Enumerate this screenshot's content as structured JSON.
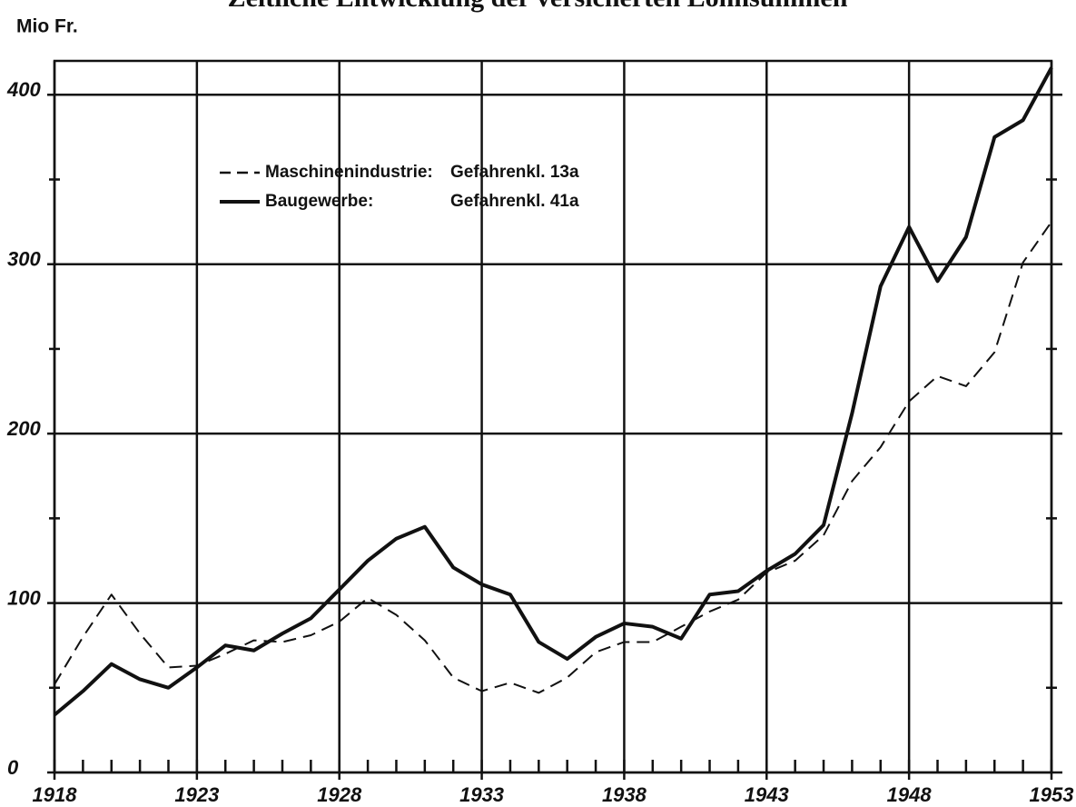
{
  "chart_data": {
    "type": "line",
    "title": "Zeitliche Entwicklung der versicherten Lohnsummen",
    "y_label": "Mio Fr.",
    "x": [
      1918,
      1919,
      1920,
      1921,
      1922,
      1923,
      1924,
      1925,
      1926,
      1927,
      1928,
      1929,
      1930,
      1931,
      1932,
      1933,
      1934,
      1935,
      1936,
      1937,
      1938,
      1939,
      1940,
      1941,
      1942,
      1943,
      1944,
      1945,
      1946,
      1947,
      1948,
      1949,
      1950,
      1951,
      1952,
      1953
    ],
    "series": [
      {
        "name": "Maschinenindustrie:",
        "risk_class": "Gefahrenkl. 13a",
        "color": "#111111",
        "dash": true,
        "values": [
          52,
          80,
          105,
          82,
          62,
          63,
          70,
          78,
          77,
          81,
          89,
          103,
          93,
          78,
          56,
          48,
          53,
          47,
          56,
          71,
          77,
          77,
          86,
          95,
          102,
          118,
          125,
          140,
          172,
          192,
          219,
          234,
          228,
          248,
          301,
          325
        ]
      },
      {
        "name": "Baugewerbe:",
        "risk_class": "Gefahrenkl. 41a",
        "color": "#111111",
        "dash": false,
        "values": [
          34,
          48,
          64,
          55,
          50,
          62,
          75,
          72,
          82,
          91,
          108,
          125,
          138,
          145,
          121,
          111,
          105,
          77,
          67,
          80,
          88,
          86,
          79,
          105,
          107,
          119,
          129,
          146,
          212,
          287,
          322,
          290,
          316,
          375,
          385,
          416
        ]
      }
    ],
    "xlim": [
      1918,
      1953
    ],
    "xticks": [
      1918,
      1923,
      1928,
      1933,
      1938,
      1943,
      1948,
      1953
    ],
    "ylim": [
      0,
      420
    ],
    "yticks": [
      0,
      100,
      200,
      300,
      400
    ],
    "yminor_ticks": [
      50,
      150,
      250,
      350
    ],
    "grid": true
  }
}
